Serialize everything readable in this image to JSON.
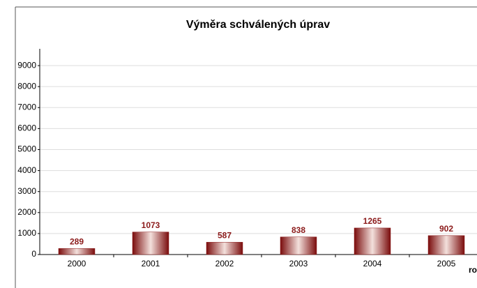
{
  "chart_data": {
    "type": "bar",
    "title": "Výměra schválených úprav",
    "x_label": "ro",
    "categories": [
      "2000",
      "2001",
      "2002",
      "2003",
      "2004",
      "2005"
    ],
    "values": [
      289,
      1073,
      587,
      838,
      1265,
      902
    ],
    "color": "#8b1a1a",
    "ylim": [
      0,
      9800
    ],
    "yticks": [
      0,
      1000,
      2000,
      3000,
      4000,
      5000,
      6000,
      7000,
      8000,
      9000
    ],
    "grid": true
  }
}
